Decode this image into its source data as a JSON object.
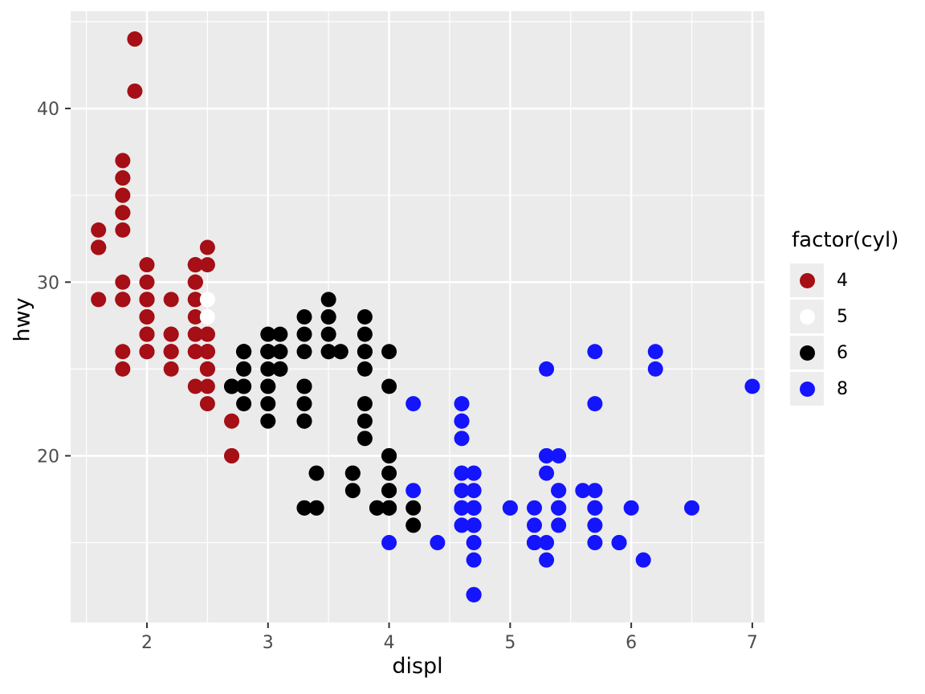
{
  "figure": {
    "background": "#FFFFFF"
  },
  "panel": {
    "background": "#EBEBEB",
    "grid_major_color": "#FFFFFF",
    "grid_minor_color": "#FFFFFF",
    "tick_color": "#333333",
    "tick_label_color": "#4D4D4D"
  },
  "legend": {
    "title": "factor(cyl)",
    "items": [
      {
        "label": "4",
        "color": "#A50F15"
      },
      {
        "label": "5",
        "color": "#FFFFFF"
      },
      {
        "label": "6",
        "color": "#000000"
      },
      {
        "label": "8",
        "color": "#1414FF"
      }
    ]
  },
  "chart_data": {
    "type": "scatter",
    "title": "",
    "xlabel": "displ",
    "ylabel": "hwy",
    "xlim": [
      1.37,
      7.1
    ],
    "ylim": [
      10.4,
      45.6
    ],
    "x_ticks": [
      2,
      3,
      4,
      5,
      6,
      7
    ],
    "y_ticks": [
      20,
      30,
      40
    ],
    "x_minor": [
      1.5,
      2.5,
      3.5,
      4.5,
      5.5,
      6.5
    ],
    "y_minor": [
      15,
      25,
      35,
      45
    ],
    "legend_position": "right",
    "series": [
      {
        "name": "4",
        "color": "#A50F15",
        "points": [
          [
            1.8,
            29
          ],
          [
            1.8,
            29
          ],
          [
            2.0,
            31
          ],
          [
            2.0,
            30
          ],
          [
            1.8,
            26
          ],
          [
            1.8,
            25
          ],
          [
            2.0,
            28
          ],
          [
            2.0,
            27
          ],
          [
            2.4,
            30
          ],
          [
            2.4,
            29
          ],
          [
            2.4,
            24
          ],
          [
            1.6,
            33
          ],
          [
            1.6,
            32
          ],
          [
            1.6,
            32
          ],
          [
            1.6,
            29
          ],
          [
            1.6,
            32
          ],
          [
            1.8,
            34
          ],
          [
            1.8,
            36
          ],
          [
            1.8,
            36
          ],
          [
            2.0,
            29
          ],
          [
            2.4,
            26
          ],
          [
            2.4,
            27
          ],
          [
            2.4,
            30
          ],
          [
            2.4,
            31
          ],
          [
            2.5,
            26
          ],
          [
            2.5,
            27
          ],
          [
            2.0,
            26
          ],
          [
            2.0,
            27
          ],
          [
            2.0,
            28
          ],
          [
            2.0,
            27
          ],
          [
            2.4,
            29
          ],
          [
            2.4,
            27
          ],
          [
            2.5,
            31
          ],
          [
            2.5,
            32
          ],
          [
            2.5,
            26
          ],
          [
            2.5,
            24
          ],
          [
            2.5,
            26
          ],
          [
            2.5,
            23
          ],
          [
            2.5,
            26
          ],
          [
            2.5,
            25
          ],
          [
            2.2,
            26
          ],
          [
            2.2,
            25
          ],
          [
            2.5,
            25
          ],
          [
            2.5,
            27
          ],
          [
            2.5,
            25
          ],
          [
            2.5,
            26
          ],
          [
            2.7,
            20
          ],
          [
            2.2,
            26
          ],
          [
            2.2,
            27
          ],
          [
            2.4,
            28
          ],
          [
            2.4,
            31
          ],
          [
            2.2,
            26
          ],
          [
            2.2,
            27
          ],
          [
            2.4,
            29
          ],
          [
            2.4,
            31
          ],
          [
            1.8,
            30
          ],
          [
            1.8,
            33
          ],
          [
            1.8,
            34
          ],
          [
            1.8,
            35
          ],
          [
            1.8,
            37
          ],
          [
            2.7,
            20
          ],
          [
            2.7,
            22
          ],
          [
            2.0,
            29
          ],
          [
            2.0,
            29
          ],
          [
            1.9,
            44
          ],
          [
            2.0,
            29
          ],
          [
            2.0,
            29
          ],
          [
            1.9,
            44
          ],
          [
            1.9,
            41
          ],
          [
            2.0,
            29
          ],
          [
            2.0,
            26
          ],
          [
            1.8,
            29
          ],
          [
            1.8,
            29
          ],
          [
            2.0,
            28
          ],
          [
            2.2,
            29
          ],
          [
            2.4,
            26
          ],
          [
            2.0,
            26
          ],
          [
            1.8,
            29
          ],
          [
            2.0,
            29
          ],
          [
            2.4,
            30
          ],
          [
            1.6,
            32
          ]
        ]
      },
      {
        "name": "5",
        "color": "#FFFFFF",
        "points": [
          [
            2.5,
            28
          ],
          [
            2.5,
            29
          ],
          [
            2.5,
            29
          ],
          [
            2.5,
            28
          ]
        ]
      },
      {
        "name": "6",
        "color": "#000000",
        "points": [
          [
            2.8,
            26
          ],
          [
            2.8,
            26
          ],
          [
            3.1,
            27
          ],
          [
            2.8,
            25
          ],
          [
            2.8,
            25
          ],
          [
            3.1,
            25
          ],
          [
            3.1,
            25
          ],
          [
            2.8,
            24
          ],
          [
            3.1,
            25
          ],
          [
            3.1,
            26
          ],
          [
            3.5,
            29
          ],
          [
            3.6,
            26
          ],
          [
            3.0,
            24
          ],
          [
            3.3,
            22
          ],
          [
            3.3,
            22
          ],
          [
            3.3,
            24
          ],
          [
            3.3,
            24
          ],
          [
            3.3,
            17
          ],
          [
            3.8,
            22
          ],
          [
            3.8,
            21
          ],
          [
            3.8,
            23
          ],
          [
            4.0,
            17
          ],
          [
            3.7,
            19
          ],
          [
            3.7,
            18
          ],
          [
            3.9,
            17
          ],
          [
            3.9,
            17
          ],
          [
            3.9,
            17
          ],
          [
            4.0,
            17
          ],
          [
            4.0,
            17
          ],
          [
            4.0,
            18
          ],
          [
            4.0,
            17
          ],
          [
            4.2,
            17
          ],
          [
            4.2,
            16
          ],
          [
            3.8,
            26
          ],
          [
            3.8,
            25
          ],
          [
            4.0,
            26
          ],
          [
            4.0,
            24
          ],
          [
            3.3,
            28
          ],
          [
            2.7,
            24
          ],
          [
            2.7,
            24
          ],
          [
            2.7,
            24
          ],
          [
            3.0,
            22
          ],
          [
            3.7,
            19
          ],
          [
            4.0,
            20
          ],
          [
            4.0,
            17
          ],
          [
            4.0,
            19
          ],
          [
            3.5,
            26
          ],
          [
            3.5,
            27
          ],
          [
            3.0,
            26
          ],
          [
            3.0,
            25
          ],
          [
            3.5,
            28
          ],
          [
            3.3,
            17
          ],
          [
            4.0,
            20
          ],
          [
            3.1,
            26
          ],
          [
            3.8,
            26
          ],
          [
            3.8,
            27
          ],
          [
            3.8,
            28
          ],
          [
            3.4,
            19
          ],
          [
            3.4,
            17
          ],
          [
            4.0,
            20
          ],
          [
            3.0,
            26
          ],
          [
            3.0,
            26
          ],
          [
            3.5,
            28
          ],
          [
            3.0,
            26
          ],
          [
            3.0,
            27
          ],
          [
            3.3,
            27
          ],
          [
            3.0,
            23
          ],
          [
            3.3,
            23
          ],
          [
            3.4,
            19
          ],
          [
            3.4,
            17
          ],
          [
            4.0,
            18
          ],
          [
            2.8,
            24
          ],
          [
            2.8,
            23
          ],
          [
            2.8,
            26
          ],
          [
            2.8,
            26
          ],
          [
            3.6,
            26
          ],
          [
            3.3,
            26
          ],
          [
            3.5,
            26
          ],
          [
            3.0,
            24
          ]
        ]
      },
      {
        "name": "8",
        "color": "#1414FF",
        "points": [
          [
            4.2,
            23
          ],
          [
            5.3,
            20
          ],
          [
            5.3,
            15
          ],
          [
            5.3,
            20
          ],
          [
            5.7,
            17
          ],
          [
            6.0,
            17
          ],
          [
            5.7,
            26
          ],
          [
            5.7,
            23
          ],
          [
            6.2,
            26
          ],
          [
            6.2,
            25
          ],
          [
            7.0,
            24
          ],
          [
            5.3,
            14
          ],
          [
            5.3,
            19
          ],
          [
            5.7,
            15
          ],
          [
            6.5,
            17
          ],
          [
            4.7,
            19
          ],
          [
            4.7,
            19
          ],
          [
            4.7,
            12
          ],
          [
            5.2,
            17
          ],
          [
            5.2,
            15
          ],
          [
            4.7,
            16
          ],
          [
            4.7,
            12
          ],
          [
            4.7,
            17
          ],
          [
            5.2,
            15
          ],
          [
            5.7,
            16
          ],
          [
            5.9,
            15
          ],
          [
            4.7,
            16
          ],
          [
            4.7,
            12
          ],
          [
            4.7,
            17
          ],
          [
            4.7,
            15
          ],
          [
            4.7,
            16
          ],
          [
            4.7,
            12
          ],
          [
            5.2,
            15
          ],
          [
            5.2,
            16
          ],
          [
            5.7,
            17
          ],
          [
            5.9,
            15
          ],
          [
            4.6,
            17
          ],
          [
            5.4,
            17
          ],
          [
            5.4,
            18
          ],
          [
            4.6,
            19
          ],
          [
            5.0,
            17
          ],
          [
            4.6,
            18
          ],
          [
            4.6,
            17
          ],
          [
            4.6,
            17
          ],
          [
            5.4,
            17
          ],
          [
            4.6,
            21
          ],
          [
            4.6,
            22
          ],
          [
            4.6,
            23
          ],
          [
            4.6,
            22
          ],
          [
            5.4,
            20
          ],
          [
            4.7,
            17
          ],
          [
            4.7,
            14
          ],
          [
            5.7,
            18
          ],
          [
            6.1,
            14
          ],
          [
            4.0,
            15
          ],
          [
            4.2,
            18
          ],
          [
            4.4,
            15
          ],
          [
            4.6,
            16
          ],
          [
            5.4,
            17
          ],
          [
            5.4,
            16
          ],
          [
            5.4,
            18
          ],
          [
            4.6,
            19
          ],
          [
            5.0,
            17
          ],
          [
            5.6,
            18
          ],
          [
            5.3,
            25
          ],
          [
            4.7,
            17
          ],
          [
            4.7,
            18
          ],
          [
            4.7,
            17
          ],
          [
            4.7,
            16
          ],
          [
            5.7,
            17
          ]
        ]
      }
    ]
  }
}
